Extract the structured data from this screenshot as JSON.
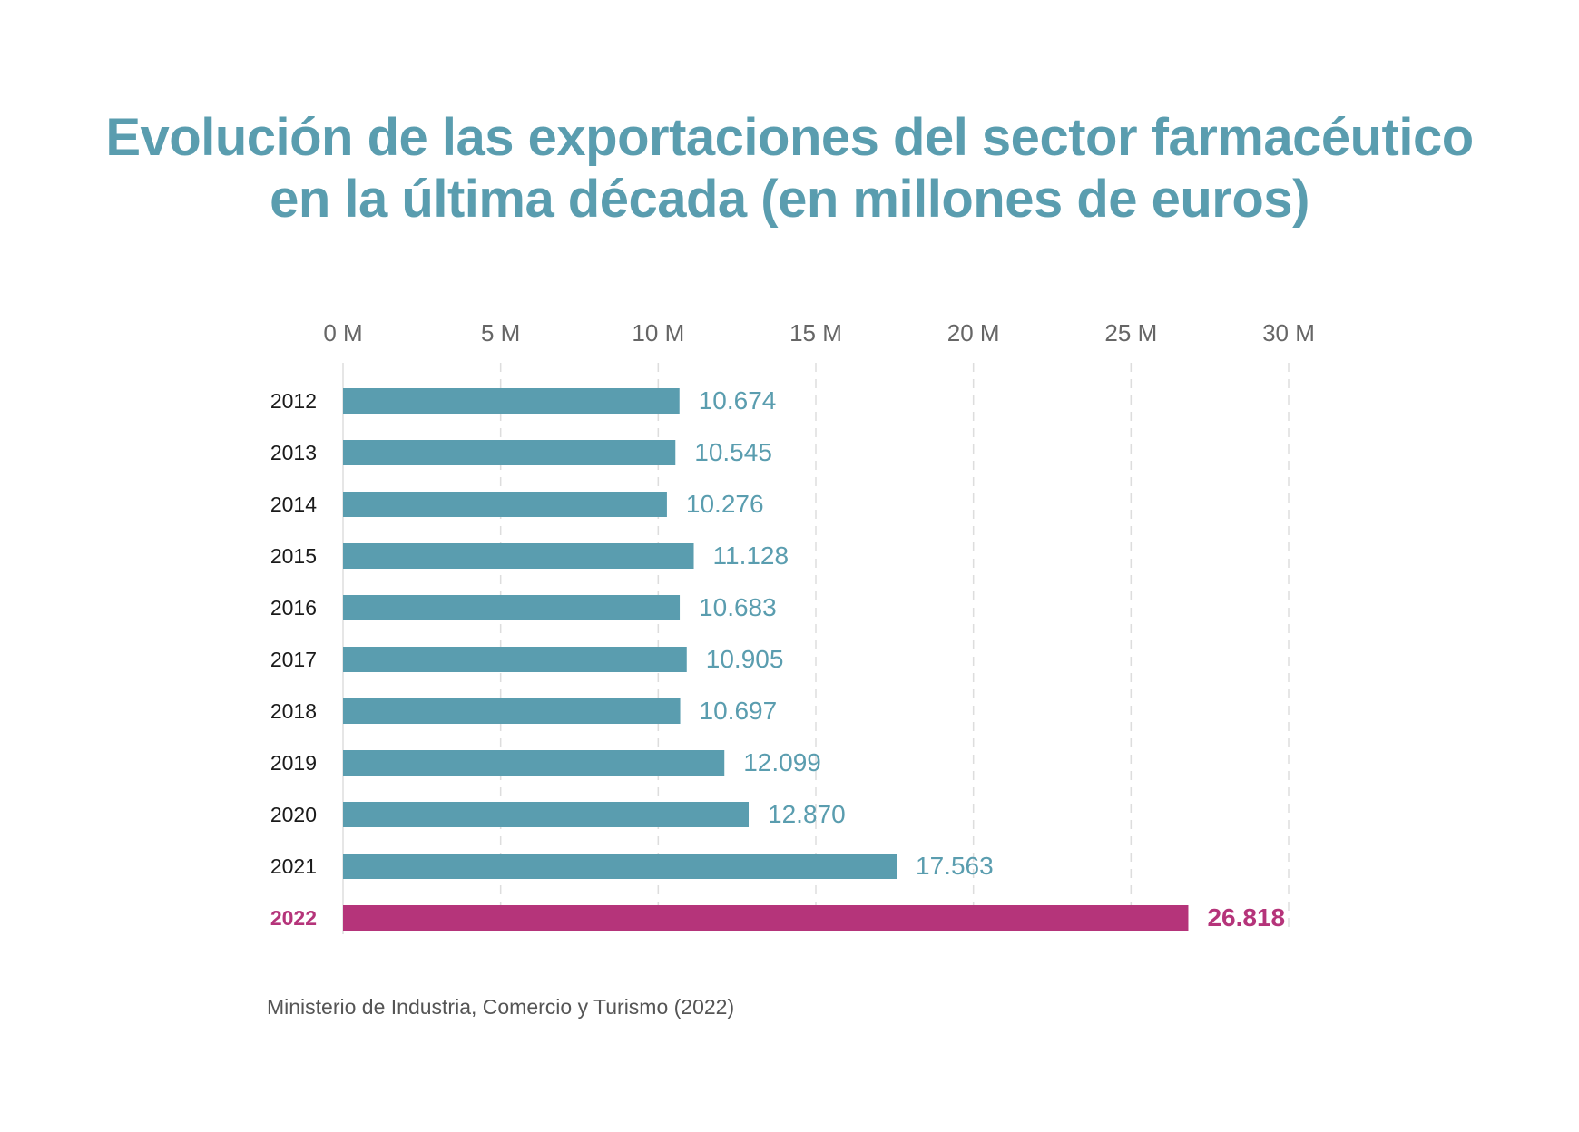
{
  "title_line1": "Evolución de las exportaciones del sector farmacéutico",
  "title_line2": "en la última década (en millones de euros)",
  "source": "Ministerio de Industria, Comercio y Turismo (2022)",
  "colors": {
    "bar": "#5a9daf",
    "highlight": "#b5347a",
    "title": "#5a9daf",
    "axis_text": "#666666",
    "grid": "#dddddd"
  },
  "chart_data": {
    "type": "bar",
    "orientation": "horizontal",
    "x_ticks": [
      "0 M",
      "5 M",
      "10 M",
      "15 M",
      "20 M",
      "25 M",
      "30 M"
    ],
    "xlim": [
      0,
      30000
    ],
    "x_axis_position": "top",
    "grid": true,
    "categories": [
      "2012",
      "2013",
      "2014",
      "2015",
      "2016",
      "2017",
      "2018",
      "2019",
      "2020",
      "2021",
      "2022"
    ],
    "values": [
      10674,
      10545,
      10276,
      11128,
      10683,
      10905,
      10697,
      12099,
      12870,
      17563,
      26818
    ],
    "value_labels": [
      "10.674",
      "10.545",
      "10.276",
      "11.128",
      "10.683",
      "10.905",
      "10.697",
      "12.099",
      "12.870",
      "17.563",
      "26.818"
    ],
    "highlighted_category": "2022"
  }
}
